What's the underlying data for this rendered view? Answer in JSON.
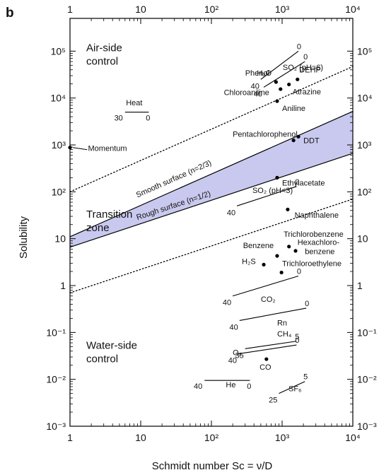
{
  "chart_data": {
    "type": "scatter",
    "panel_label": "b",
    "xlabel": "Schmidt number Sc = ν/D",
    "ylabel": "Solubility",
    "x_scale": "log",
    "y_scale": "log",
    "xlim": [
      1,
      10000
    ],
    "ylim": [
      0.001,
      500000
    ],
    "grid": false,
    "x_ticks": [
      {
        "value": 1,
        "label": "1"
      },
      {
        "value": 10,
        "label": "10"
      },
      {
        "value": 100,
        "label": "10²"
      },
      {
        "value": 1000,
        "label": "10³"
      },
      {
        "value": 10000,
        "label": "10⁴"
      }
    ],
    "y_ticks": [
      {
        "value": 0.001,
        "label": "10⁻³"
      },
      {
        "value": 0.01,
        "label": "10⁻²"
      },
      {
        "value": 0.1,
        "label": "10⁻¹"
      },
      {
        "value": 1,
        "label": "1"
      },
      {
        "value": 10,
        "label": "10"
      },
      {
        "value": 100,
        "label": "10²"
      },
      {
        "value": 1000,
        "label": "10³"
      },
      {
        "value": 10000,
        "label": "10⁴"
      },
      {
        "value": 100000,
        "label": "10⁵"
      }
    ],
    "regions": [
      {
        "lines": [
          "Air-side",
          "control"
        ],
        "x": 1.7,
        "y": 100000
      },
      {
        "lines": [
          "Transition",
          "zone"
        ],
        "x": 1.7,
        "y": 28
      },
      {
        "lines": [
          "Water-side",
          "control"
        ],
        "x": 1.7,
        "y": 0.045
      }
    ],
    "boundaries": [
      {
        "name": "Smooth surface (n=2/3)",
        "style": "solid",
        "from": [
          1,
          11
        ],
        "to": [
          10000,
          5200
        ]
      },
      {
        "name": "Rough surface (n=1/2)",
        "style": "solid",
        "from": [
          1,
          6.6
        ],
        "to": [
          10000,
          660
        ]
      },
      {
        "name": "upper-transition",
        "style": "dotted",
        "from": [
          1,
          100
        ],
        "to": [
          10000,
          47000
        ]
      },
      {
        "name": "lower-transition",
        "style": "dotted",
        "from": [
          1,
          0.7
        ],
        "to": [
          10000,
          70
        ]
      }
    ],
    "boundary_labels": [
      {
        "text": "Smooth surface (n=2/3)",
        "x": 9,
        "y": 75
      },
      {
        "text": "Rough surface (n=1/2)",
        "x": 9,
        "y": 25
      }
    ],
    "points": [
      {
        "label": "Momentum",
        "x": 1,
        "y": 880
      },
      {
        "label": "Phenol",
        "x": 820,
        "y": 22000
      },
      {
        "label": "DEHP",
        "x": 1650,
        "y": 25000
      },
      {
        "label": "Chloroaniline",
        "x": 950,
        "y": 15500
      },
      {
        "label": "Atrazine",
        "x": 1250,
        "y": 19500
      },
      {
        "label": "Aniline",
        "x": 850,
        "y": 8600
      },
      {
        "label": "Pentachlorophenol",
        "x": 1700,
        "y": 1500
      },
      {
        "label": "DDT",
        "x": 1450,
        "y": 1250
      },
      {
        "label": "Ethylacetate",
        "x": 850,
        "y": 200
      },
      {
        "label": "Naphthalene",
        "x": 1200,
        "y": 42
      },
      {
        "label": "Trichlorobenzene",
        "x": 1250,
        "y": 6.8
      },
      {
        "label": "Hexachlorobenzene",
        "x": 1550,
        "y": 5.5
      },
      {
        "label": "Benzene",
        "x": 850,
        "y": 4.3
      },
      {
        "label": "H₂S",
        "x": 550,
        "y": 2.8
      },
      {
        "label": "Trichloroethylene",
        "x": 980,
        "y": 1.9
      },
      {
        "label": "CO",
        "x": 600,
        "y": 0.027
      }
    ],
    "ranges": [
      {
        "label": "H₂O",
        "from": [
          500,
          25000
        ],
        "to": [
          1700,
          100000
        ],
        "start_label": "40",
        "end_label": "0"
      },
      {
        "label": "SO₂ (pH=6)",
        "from": [
          550,
          17000
        ],
        "to": [
          2100,
          60000
        ],
        "start_label": "40",
        "end_label": "0"
      },
      {
        "label": "Heat",
        "from": [
          6,
          5000
        ],
        "to": [
          13,
          5000
        ],
        "start_label": "30",
        "end_label": "0"
      },
      {
        "label": "SO₂ (pH<3)",
        "from": [
          230,
          50
        ],
        "to": [
          1600,
          130
        ],
        "start_label": "40",
        "end_label": "0"
      },
      {
        "label": "CO₂",
        "from": [
          200,
          0.6
        ],
        "to": [
          1700,
          1.6
        ],
        "start_label": "40",
        "end_label": "0"
      },
      {
        "label": "Rn",
        "from": [
          250,
          0.18
        ],
        "to": [
          2200,
          0.33
        ],
        "start_label": "40",
        "end_label": "0"
      },
      {
        "label": "CH₄",
        "from": [
          300,
          0.045
        ],
        "to": [
          1600,
          0.065
        ],
        "start_label": "35",
        "end_label": "5"
      },
      {
        "label": "O₂",
        "from": [
          240,
          0.035
        ],
        "to": [
          1600,
          0.054
        ],
        "start_label": "40",
        "end_label": "0"
      },
      {
        "label": "He",
        "from": [
          80,
          0.0095
        ],
        "to": [
          350,
          0.0095
        ],
        "start_label": "40",
        "end_label": "0"
      },
      {
        "label": "SF₆",
        "from": [
          900,
          0.005
        ],
        "to": [
          2100,
          0.009
        ],
        "start_label": "25",
        "end_label": "5"
      }
    ],
    "labels": [
      {
        "text": "H₂O",
        "x": 440,
        "y": 30000
      },
      {
        "text": "SO₂ (pH=6)",
        "x": 1020,
        "y": 40000
      },
      {
        "text": "DEHP",
        "x": 1750,
        "y": 35000
      },
      {
        "text": "Phenol",
        "x": 300,
        "y": 30000
      },
      {
        "text": "Atrazine",
        "x": 1400,
        "y": 12000
      },
      {
        "text": "Chloroaniline",
        "x": 150,
        "y": 11500
      },
      {
        "text": "Aniline",
        "x": 1000,
        "y": 5300
      },
      {
        "text": "Heat",
        "x": 6.2,
        "y": 7000
      },
      {
        "text": "Momentum",
        "x": 1.8,
        "y": 750
      },
      {
        "text": "Pentachlorophenol",
        "x": 200,
        "y": 1500
      },
      {
        "text": "DDT",
        "x": 2000,
        "y": 1100
      },
      {
        "text": "Ethylacetate",
        "x": 1000,
        "y": 135
      },
      {
        "text": "SO₂ (pH<3)",
        "x": 380,
        "y": 95
      },
      {
        "text": "Naphthalene",
        "x": 1500,
        "y": 28
      },
      {
        "text": "Trichlorobenzene",
        "x": 1050,
        "y": 11
      },
      {
        "text": "Hexachloro-",
        "x": 1650,
        "y": 7.3
      },
      {
        "text": "benzene",
        "x": 2100,
        "y": 4.7
      },
      {
        "text": "Benzene",
        "x": 280,
        "y": 6.3
      },
      {
        "text": "H₂S",
        "x": 270,
        "y": 2.9
      },
      {
        "text": "Trichloroethylene",
        "x": 1000,
        "y": 2.6
      },
      {
        "text": "CO₂",
        "x": 500,
        "y": 0.45
      },
      {
        "text": "Rn",
        "x": 850,
        "y": 0.14
      },
      {
        "text": "CH₄",
        "x": 850,
        "y": 0.082
      },
      {
        "text": "O₂",
        "x": 200,
        "y": 0.033
      },
      {
        "text": "CO",
        "x": 480,
        "y": 0.016
      },
      {
        "text": "He",
        "x": 160,
        "y": 0.0067
      },
      {
        "text": "SF₆",
        "x": 1230,
        "y": 0.0056
      }
    ]
  },
  "colors": {
    "transition_fill": "#c9c9ef",
    "line": "#000000",
    "text": "#111111"
  }
}
